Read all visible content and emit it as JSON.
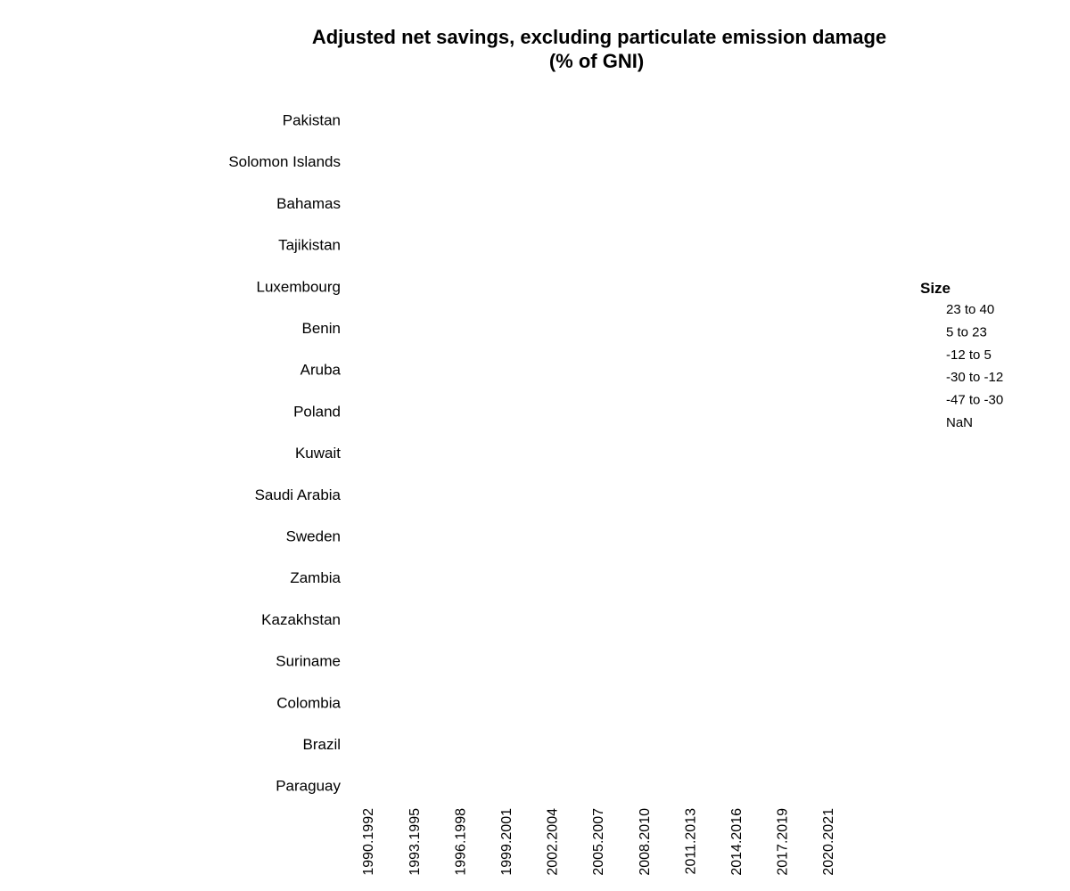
{
  "chart_data": {
    "type": "scatter",
    "title": "Adjusted net savings, excluding particulate emission damage (% of GNI)",
    "title_lines": [
      "Adjusted net savings, excluding particulate emission damage",
      "(% of GNI)"
    ],
    "y_categories": [
      "Pakistan",
      "Solomon Islands",
      "Bahamas",
      "Tajikistan",
      "Luxembourg",
      "Benin",
      "Aruba",
      "Poland",
      "Kuwait",
      "Saudi Arabia",
      "Sweden",
      "Zambia",
      "Kazakhstan",
      "Suriname",
      "Colombia",
      "Brazil",
      "Paraguay"
    ],
    "x_categories": [
      "1990.1992",
      "1993.1995",
      "1996.1998",
      "1999.2001",
      "2002.2004",
      "2005.2007",
      "2008.2010",
      "2011.2013",
      "2014.2016",
      "2017.2019",
      "2020.2021"
    ],
    "legend": {
      "title": "Size",
      "items": [
        "23 to 40",
        "5 to 23",
        "-12 to 5",
        "-30 to -12",
        "-47 to -30",
        "NaN"
      ],
      "placement": "right"
    },
    "points": [],
    "grid": false
  }
}
